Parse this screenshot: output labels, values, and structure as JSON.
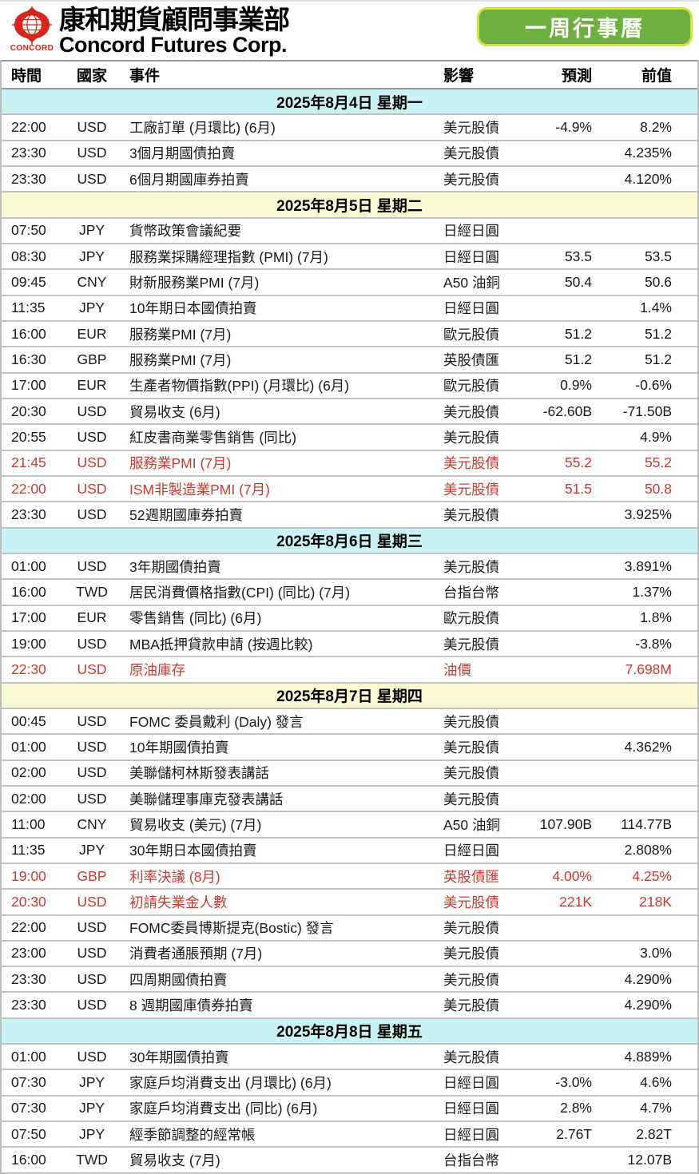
{
  "header": {
    "logo_word": "CONCORD",
    "company_zh": "康和期貨顧問事業部",
    "company_en": "Concord Futures Corp.",
    "week_button_label": "一周行事曆"
  },
  "colors": {
    "logo_red": "#d6251d",
    "button_green": "#6fae41",
    "button_border": "#cfe13c",
    "highlight_red": "#c93b31",
    "band_cyan": "#c8f2f3",
    "band_yellow": "#faf8d3"
  },
  "table": {
    "columns": [
      {
        "key": "time",
        "label": "時間"
      },
      {
        "key": "country",
        "label": "國家"
      },
      {
        "key": "event",
        "label": "事件"
      },
      {
        "key": "impact",
        "label": "影響"
      },
      {
        "key": "forecast",
        "label": "預測"
      },
      {
        "key": "previous",
        "label": "前值"
      }
    ],
    "days": [
      {
        "date_label": "2025年8月4日 星期一",
        "band": "band-cyan",
        "events": [
          {
            "time": "22:00",
            "country": "USD",
            "event": "工廠訂單 (月環比) (6月)",
            "impact": "美元股債",
            "forecast": "-4.9%",
            "previous": "8.2%",
            "highlight": false
          },
          {
            "time": "23:30",
            "country": "USD",
            "event": "3個月期國債拍賣",
            "impact": "美元股債",
            "forecast": "",
            "previous": "4.235%",
            "highlight": false
          },
          {
            "time": "23:30",
            "country": "USD",
            "event": "6個月期國庫券拍賣",
            "impact": "美元股債",
            "forecast": "",
            "previous": "4.120%",
            "highlight": false
          }
        ]
      },
      {
        "date_label": "2025年8月5日 星期二",
        "band": "band-yellow",
        "events": [
          {
            "time": "07:50",
            "country": "JPY",
            "event": "貨幣政策會議紀要",
            "impact": "日經日圓",
            "forecast": "",
            "previous": "",
            "highlight": false
          },
          {
            "time": "08:30",
            "country": "JPY",
            "event": "服務業採購經理指數 (PMI) (7月)",
            "impact": "日經日圓",
            "forecast": "53.5",
            "previous": "53.5",
            "highlight": false
          },
          {
            "time": "09:45",
            "country": "CNY",
            "event": "財新服務業PMI (7月)",
            "impact": "A50 油銅",
            "forecast": "50.4",
            "previous": "50.6",
            "highlight": false
          },
          {
            "time": "11:35",
            "country": "JPY",
            "event": "10年期日本國債拍賣",
            "impact": "日經日圓",
            "forecast": "",
            "previous": "1.4%",
            "highlight": false
          },
          {
            "time": "16:00",
            "country": "EUR",
            "event": "服務業PMI (7月)",
            "impact": "歐元股債",
            "forecast": "51.2",
            "previous": "51.2",
            "highlight": false
          },
          {
            "time": "16:30",
            "country": "GBP",
            "event": "服務業PMI (7月)",
            "impact": "英股債匯",
            "forecast": "51.2",
            "previous": "51.2",
            "highlight": false
          },
          {
            "time": "17:00",
            "country": "EUR",
            "event": "生產者物價指數(PPI) (月環比) (6月)",
            "impact": "歐元股債",
            "forecast": "0.9%",
            "previous": "-0.6%",
            "highlight": false
          },
          {
            "time": "20:30",
            "country": "USD",
            "event": "貿易收支 (6月)",
            "impact": "美元股債",
            "forecast": "-62.60B",
            "previous": "-71.50B",
            "highlight": false
          },
          {
            "time": "20:55",
            "country": "USD",
            "event": "紅皮書商業零售銷售 (同比)",
            "impact": "美元股債",
            "forecast": "",
            "previous": "4.9%",
            "highlight": false
          },
          {
            "time": "21:45",
            "country": "USD",
            "event": "服務業PMI (7月)",
            "impact": "美元股債",
            "forecast": "55.2",
            "previous": "55.2",
            "highlight": true
          },
          {
            "time": "22:00",
            "country": "USD",
            "event": "ISM非製造業PMI (7月)",
            "impact": "美元股債",
            "forecast": "51.5",
            "previous": "50.8",
            "highlight": true
          },
          {
            "time": "23:30",
            "country": "USD",
            "event": "52週期國庫券拍賣",
            "impact": "美元股債",
            "forecast": "",
            "previous": "3.925%",
            "highlight": false
          }
        ]
      },
      {
        "date_label": "2025年8月6日 星期三",
        "band": "band-cyan",
        "events": [
          {
            "time": "01:00",
            "country": "USD",
            "event": "3年期國債拍賣",
            "impact": "美元股債",
            "forecast": "",
            "previous": "3.891%",
            "highlight": false
          },
          {
            "time": "16:00",
            "country": "TWD",
            "event": "居民消費價格指數(CPI) (同比) (7月)",
            "impact": "台指台幣",
            "forecast": "",
            "previous": "1.37%",
            "highlight": false
          },
          {
            "time": "17:00",
            "country": "EUR",
            "event": "零售銷售 (同比) (6月)",
            "impact": "歐元股債",
            "forecast": "",
            "previous": "1.8%",
            "highlight": false
          },
          {
            "time": "19:00",
            "country": "USD",
            "event": "MBA抵押貸款申請 (按週比較)",
            "impact": "美元股債",
            "forecast": "",
            "previous": "-3.8%",
            "highlight": false
          },
          {
            "time": "22:30",
            "country": "USD",
            "event": "原油庫存",
            "impact": "油價",
            "forecast": "",
            "previous": "7.698M",
            "highlight": true
          }
        ]
      },
      {
        "date_label": "2025年8月7日 星期四",
        "band": "band-yellow",
        "events": [
          {
            "time": "00:45",
            "country": "USD",
            "event": "FOMC 委員戴利 (Daly) 發言",
            "impact": "美元股債",
            "forecast": "",
            "previous": "",
            "highlight": false
          },
          {
            "time": "01:00",
            "country": "USD",
            "event": "10年期國債拍賣",
            "impact": "美元股債",
            "forecast": "",
            "previous": "4.362%",
            "highlight": false
          },
          {
            "time": "02:00",
            "country": "USD",
            "event": "美聯儲柯林斯發表講話",
            "impact": "美元股債",
            "forecast": "",
            "previous": "",
            "highlight": false
          },
          {
            "time": "02:00",
            "country": "USD",
            "event": "美聯儲理事庫克發表講話",
            "impact": "美元股債",
            "forecast": "",
            "previous": "",
            "highlight": false
          },
          {
            "time": "11:00",
            "country": "CNY",
            "event": "貿易收支 (美元) (7月)",
            "impact": "A50 油銅",
            "forecast": "107.90B",
            "previous": "114.77B",
            "highlight": false
          },
          {
            "time": "11:35",
            "country": "JPY",
            "event": "30年期日本國債拍賣",
            "impact": "日經日圓",
            "forecast": "",
            "previous": "2.808%",
            "highlight": false
          },
          {
            "time": "19:00",
            "country": "GBP",
            "event": "利率決議 (8月)",
            "impact": "英股債匯",
            "forecast": "4.00%",
            "previous": "4.25%",
            "highlight": true
          },
          {
            "time": "20:30",
            "country": "USD",
            "event": "初請失業金人數",
            "impact": "美元股債",
            "forecast": "221K",
            "previous": "218K",
            "highlight": true
          },
          {
            "time": "22:00",
            "country": "USD",
            "event": "FOMC委員博斯提克(Bostic) 發言",
            "impact": "美元股債",
            "forecast": "",
            "previous": "",
            "highlight": false
          },
          {
            "time": "23:00",
            "country": "USD",
            "event": "消費者通脹預期 (7月)",
            "impact": "美元股債",
            "forecast": "",
            "previous": "3.0%",
            "highlight": false
          },
          {
            "time": "23:30",
            "country": "USD",
            "event": "四周期國債拍賣",
            "impact": "美元股債",
            "forecast": "",
            "previous": "4.290%",
            "highlight": false
          },
          {
            "time": "23:30",
            "country": "USD",
            "event": "8 週期國庫債券拍賣",
            "impact": "美元股債",
            "forecast": "",
            "previous": "4.290%",
            "highlight": false
          }
        ]
      },
      {
        "date_label": "2025年8月8日 星期五",
        "band": "band-cyan",
        "events": [
          {
            "time": "01:00",
            "country": "USD",
            "event": "30年期國債拍賣",
            "impact": "美元股債",
            "forecast": "",
            "previous": "4.889%",
            "highlight": false
          },
          {
            "time": "07:30",
            "country": "JPY",
            "event": "家庭戶均消費支出 (月環比) (6月)",
            "impact": "日經日圓",
            "forecast": "-3.0%",
            "previous": "4.6%",
            "highlight": false
          },
          {
            "time": "07:30",
            "country": "JPY",
            "event": "家庭戶均消費支出 (同比) (6月)",
            "impact": "日經日圓",
            "forecast": "2.8%",
            "previous": "4.7%",
            "highlight": false
          },
          {
            "time": "07:50",
            "country": "JPY",
            "event": "經季節調整的經常帳",
            "impact": "日經日圓",
            "forecast": "2.76T",
            "previous": "2.82T",
            "highlight": false
          },
          {
            "time": "16:00",
            "country": "TWD",
            "event": "貿易收支 (7月)",
            "impact": "台指台幣",
            "forecast": "",
            "previous": "12.07B",
            "highlight": false
          }
        ]
      }
    ]
  }
}
